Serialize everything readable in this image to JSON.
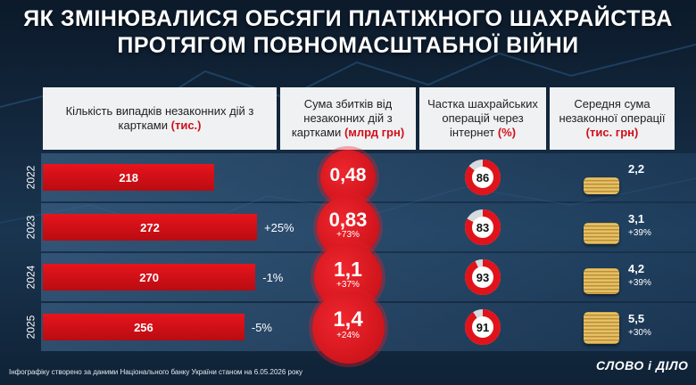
{
  "title": {
    "line1": "ЯК ЗМІНЮВАЛИСЯ ОБСЯГИ ПЛАТІЖНОГО ШАХРАЙСТВА",
    "line2": "ПРОТЯГОМ ПОВНОМАСШТАБНОЇ ВІЙНИ"
  },
  "headers": {
    "cases": {
      "text": "Кількість випадків незаконних дій з картками",
      "unit": "(тис.)"
    },
    "losses": {
      "text": "Сума збитків від незаконних дій з картками",
      "unit": "(млрд грн)"
    },
    "internet": {
      "text": "Частка шахрайських операцій через інтернет",
      "unit": "(%)"
    },
    "average": {
      "text": "Середня сума незаконної операції",
      "unit": "(тис. грн)"
    }
  },
  "footer": "Інфографіку створено за даними Національного банку України станом на 6.05.2026 року",
  "logo": "СЛОВО і ДІЛО",
  "colors": {
    "accent_red": "#e0131b",
    "pie_rest": "#d7dbe0",
    "panel": "#f0f1f3"
  },
  "chart_data": {
    "type": "table",
    "categories": [
      "2022",
      "2023",
      "2024",
      "2025"
    ],
    "series": [
      {
        "name": "Кількість випадків незаконних дій з картками (тис.)",
        "values": [
          218,
          272,
          270,
          256
        ],
        "labels": [
          "218",
          "272",
          "270",
          "256"
        ],
        "changes": [
          "",
          "+25%",
          "-1%",
          "-5%"
        ]
      },
      {
        "name": "Сума збитків від незаконних дій з картками (млрд грн)",
        "values": [
          0.48,
          0.83,
          1.1,
          1.4
        ],
        "labels": [
          "0,48",
          "0,83",
          "1,1",
          "1,4"
        ],
        "changes": [
          "",
          "+73%",
          "+37%",
          "+24%"
        ]
      },
      {
        "name": "Частка шахрайських операцій через інтернет (%)",
        "values": [
          86,
          83,
          93,
          91
        ],
        "labels": [
          "86",
          "83",
          "93",
          "91"
        ]
      },
      {
        "name": "Середня сума незаконної операції (тис. грн)",
        "values": [
          2.2,
          3.1,
          4.2,
          5.5
        ],
        "labels": [
          "2,2",
          "3,1",
          "4,2",
          "5,5"
        ],
        "changes": [
          "",
          "+39%",
          "+39%",
          "+30%"
        ]
      }
    ]
  }
}
